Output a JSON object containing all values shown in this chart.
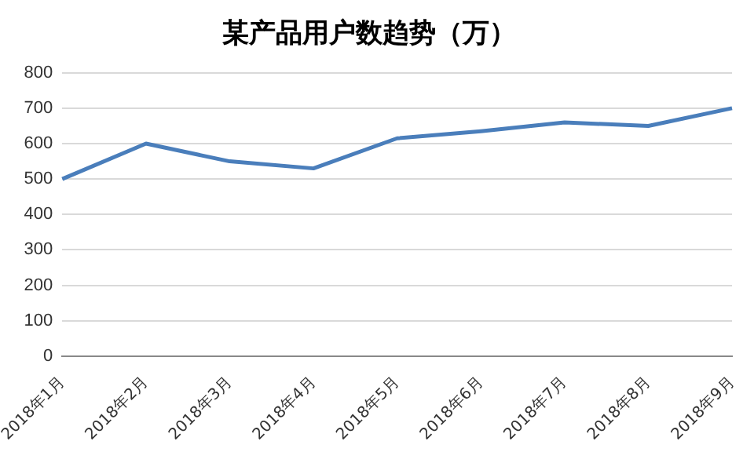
{
  "chart_data": {
    "type": "line",
    "title": "某产品用户数趋势（万）",
    "categories": [
      "2018年1月",
      "2018年2月",
      "2018年3月",
      "2018年4月",
      "2018年5月",
      "2018年6月",
      "2018年7月",
      "2018年8月",
      "2018年9月"
    ],
    "series": [
      {
        "color": "#4a7ebb",
        "values": [
          500,
          600,
          550,
          530,
          615,
          635,
          660,
          650,
          700
        ]
      }
    ],
    "ylim": [
      0,
      800
    ],
    "yticks": [
      0,
      100,
      200,
      300,
      400,
      500,
      600,
      700,
      800
    ],
    "grid": "y",
    "legend": false,
    "marker": "none",
    "line_style": "solid"
  }
}
